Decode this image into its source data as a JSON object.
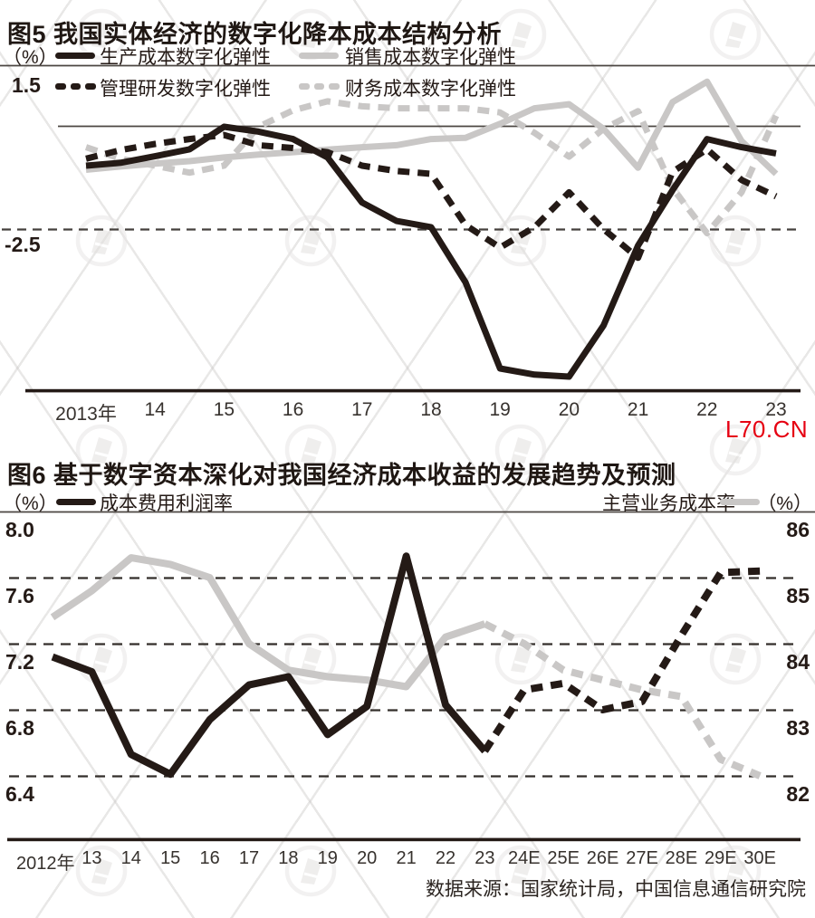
{
  "branding": {
    "watermark_text": "L70.CN",
    "watermark_color": "#e60012"
  },
  "colors": {
    "black": "#241a16",
    "gray": "#c9c7c6",
    "grid": "#3b3633",
    "red": "#e60012",
    "background": "#ffffff"
  },
  "chart_data": [
    {
      "type": "line",
      "title": "图5 我国实体经济的数字化降本成本结构分析",
      "unit": "（%）",
      "x_start": 2013,
      "x_step": 0.5,
      "x_tick_labels": [
        "2013年",
        "14",
        "15",
        "16",
        "17",
        "18",
        "19",
        "20",
        "21",
        "22",
        "23"
      ],
      "y_gridlines": [
        1.5,
        0,
        -2.5
      ],
      "y_tick_labels": {
        "top": "1.5",
        "bottom": "-2.5"
      },
      "ylim": [
        -6.8,
        1.9
      ],
      "grid": "partial",
      "legend_position": "top",
      "series": [
        {
          "name": "生产成本数字化弹性",
          "line": "solid",
          "color_key": "black",
          "values": [
            -0.95,
            -0.88,
            -0.72,
            -0.55,
            0.0,
            -0.12,
            -0.3,
            -0.75,
            -1.85,
            -2.3,
            -2.45,
            -3.8,
            -5.9,
            -6.05,
            -6.1,
            -4.85,
            -2.9,
            -1.55,
            -0.3,
            -0.5,
            -0.65
          ]
        },
        {
          "name": "销售成本数字化弹性",
          "line": "solid",
          "color_key": "gray",
          "values": [
            -1.05,
            -0.97,
            -0.9,
            -0.84,
            -0.75,
            -0.68,
            -0.62,
            -0.56,
            -0.5,
            -0.45,
            -0.3,
            -0.27,
            0.07,
            0.45,
            0.55,
            -0.05,
            -1.0,
            0.6,
            1.1,
            -0.35,
            -1.15
          ]
        },
        {
          "name": "管理研发数字化弹性",
          "line": "dashed",
          "color_key": "black",
          "values": [
            -0.78,
            -0.57,
            -0.42,
            -0.3,
            -0.2,
            -0.45,
            -0.52,
            -0.62,
            -0.95,
            -1.08,
            -1.15,
            -2.4,
            -2.95,
            -2.45,
            -1.6,
            -2.5,
            -3.2,
            -1.1,
            -0.55,
            -1.3,
            -1.7
          ]
        },
        {
          "name": "财务成本数字化弹性",
          "line": "dashed",
          "color_key": "gray",
          "values": [
            -0.5,
            -0.78,
            -0.95,
            -1.12,
            -0.95,
            0.0,
            0.4,
            0.62,
            0.5,
            0.45,
            0.45,
            0.45,
            0.35,
            -0.15,
            -0.73,
            -0.05,
            0.38,
            -1.5,
            -2.6,
            -1.6,
            0.27
          ]
        }
      ]
    },
    {
      "type": "line",
      "title": "图6 基于数字资本深化对我国经济成本收益的发展趋势及预测",
      "x_tick_labels": [
        "2012年",
        "13",
        "14",
        "15",
        "16",
        "17",
        "18",
        "19",
        "20",
        "21",
        "22",
        "23",
        "24E",
        "25E",
        "26E",
        "27E",
        "28E",
        "29E",
        "30E"
      ],
      "forecast_start_index": 11,
      "forecast_style": "dashed",
      "left_axis": {
        "unit": "（%）",
        "tick_labels": [
          "8.0",
          "7.6",
          "7.2",
          "6.8",
          "6.4"
        ],
        "range": [
          6.4,
          8.0
        ]
      },
      "right_axis": {
        "unit": "（%）",
        "tick_labels": [
          "86",
          "85",
          "84",
          "83",
          "82"
        ],
        "range": [
          82,
          86
        ]
      },
      "series": [
        {
          "name": "成本费用利润率",
          "axis": "left",
          "color_key": "black",
          "values": [
            7.12,
            7.03,
            6.53,
            6.41,
            6.74,
            6.95,
            7.0,
            6.65,
            6.82,
            7.73,
            6.83,
            6.55,
            6.92,
            6.96,
            6.8,
            6.85,
            7.25,
            7.63,
            7.64
          ]
        },
        {
          "name": "主营业务成本率",
          "axis": "right",
          "color_key": "gray",
          "values": [
            84.4,
            84.8,
            85.3,
            85.2,
            85.0,
            84.0,
            83.6,
            83.5,
            83.45,
            83.35,
            84.1,
            84.3,
            84.0,
            83.6,
            83.45,
            83.3,
            83.2,
            82.25,
            82.0
          ]
        }
      ],
      "source": "数据来源：国家统计局，中国信息通信研究院"
    }
  ]
}
